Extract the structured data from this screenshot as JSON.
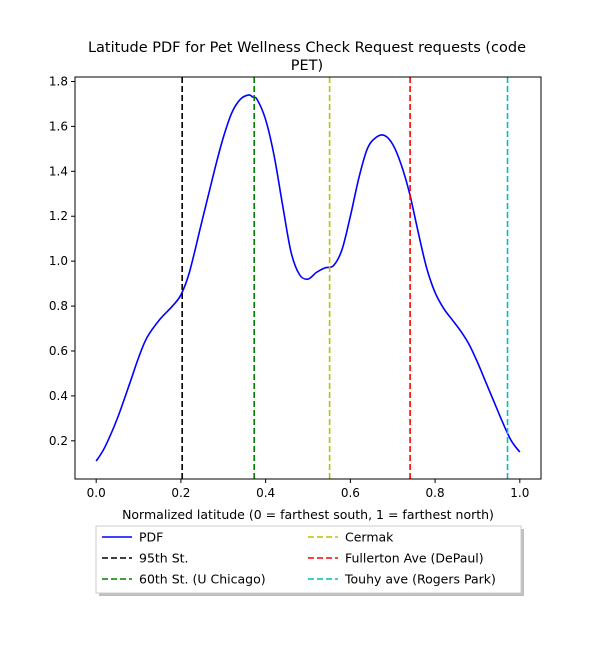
{
  "chart_data": {
    "type": "line",
    "title_line1": "Latitude PDF for Pet Wellness Check Request  requests (code",
    "title_line2": "PET)",
    "xlabel": "Normalized latitude (0 = farthest south, 1 = farthest north)",
    "ylabel": "",
    "xlim": [
      -0.05,
      1.05
    ],
    "ylim": [
      0.03,
      1.82
    ],
    "xticks": [
      0.0,
      0.2,
      0.4,
      0.6,
      0.8,
      1.0
    ],
    "xtick_labels": [
      "0.0",
      "0.2",
      "0.4",
      "0.6",
      "0.8",
      "1.0"
    ],
    "yticks": [
      0.2,
      0.4,
      0.6,
      0.8,
      1.0,
      1.2,
      1.4,
      1.6,
      1.8
    ],
    "ytick_labels": [
      "0.2",
      "0.4",
      "0.6",
      "0.8",
      "1.0",
      "1.2",
      "1.4",
      "1.6",
      "1.8"
    ],
    "grid": false,
    "legend_position": "below",
    "series": [
      {
        "name": "PDF",
        "color": "#0000ff",
        "x": [
          0.0,
          0.02,
          0.05,
          0.08,
          0.1,
          0.12,
          0.15,
          0.18,
          0.2,
          0.22,
          0.25,
          0.28,
          0.3,
          0.32,
          0.34,
          0.36,
          0.37,
          0.38,
          0.4,
          0.42,
          0.44,
          0.46,
          0.48,
          0.5,
          0.52,
          0.54,
          0.56,
          0.58,
          0.6,
          0.62,
          0.64,
          0.66,
          0.68,
          0.7,
          0.72,
          0.74,
          0.76,
          0.78,
          0.8,
          0.82,
          0.84,
          0.86,
          0.88,
          0.9,
          0.92,
          0.94,
          0.96,
          0.98,
          1.0
        ],
        "y": [
          0.11,
          0.17,
          0.3,
          0.46,
          0.57,
          0.66,
          0.74,
          0.8,
          0.85,
          0.95,
          1.18,
          1.41,
          1.55,
          1.66,
          1.72,
          1.74,
          1.73,
          1.72,
          1.63,
          1.47,
          1.25,
          1.04,
          0.94,
          0.92,
          0.95,
          0.97,
          0.98,
          1.05,
          1.2,
          1.37,
          1.5,
          1.55,
          1.56,
          1.52,
          1.43,
          1.3,
          1.13,
          0.97,
          0.86,
          0.79,
          0.74,
          0.69,
          0.63,
          0.55,
          0.46,
          0.37,
          0.28,
          0.2,
          0.15
        ]
      }
    ],
    "markers": [
      {
        "name": "95th St.",
        "x": 0.203,
        "color": "#000000"
      },
      {
        "name": "60th St. (U Chicago)",
        "x": 0.373,
        "color": "#008000"
      },
      {
        "name": "Cermak",
        "x": 0.551,
        "color": "#bfbf00"
      },
      {
        "name": "Fullerton Ave (DePaul)",
        "x": 0.741,
        "color": "#ff0000"
      },
      {
        "name": "Touhy ave (Rogers Park)",
        "x": 0.971,
        "color": "#00bfbf"
      }
    ],
    "legend": [
      {
        "label": "PDF",
        "color": "#0000ff",
        "dashed": false
      },
      {
        "label": "95th St.",
        "color": "#000000",
        "dashed": true
      },
      {
        "label": "60th St. (U Chicago)",
        "color": "#008000",
        "dashed": true
      },
      {
        "label": "Cermak",
        "color": "#bfbf00",
        "dashed": true
      },
      {
        "label": "Fullerton Ave (DePaul)",
        "color": "#ff0000",
        "dashed": true
      },
      {
        "label": "Touhy ave (Rogers Park)",
        "color": "#00bfbf",
        "dashed": true
      }
    ]
  }
}
